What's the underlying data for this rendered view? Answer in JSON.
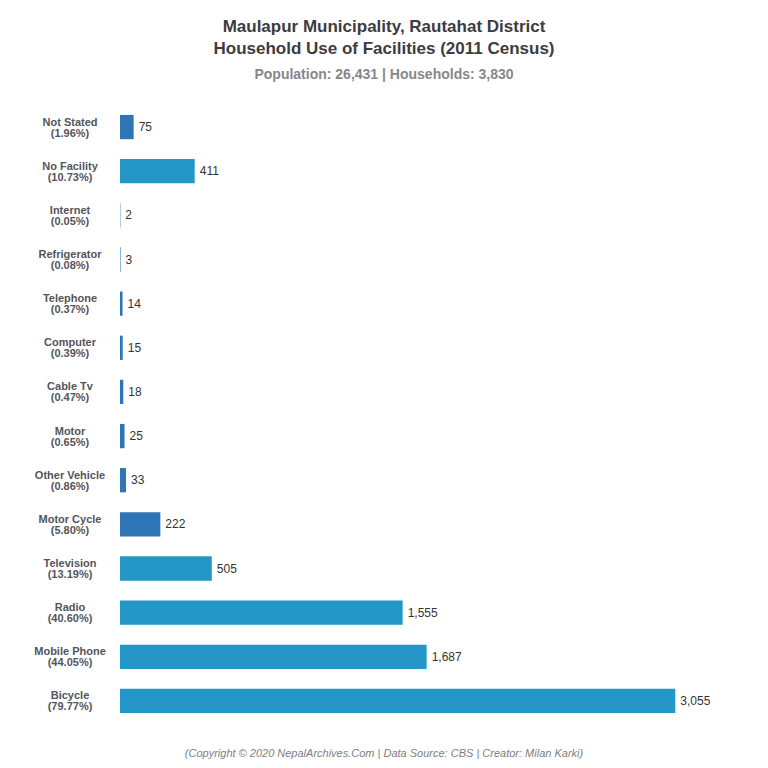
{
  "chart_data": {
    "type": "bar",
    "orientation": "horizontal",
    "title": "Maulapur Municipality, Rautahat District\nHousehold Use of Facilities (2011 Census)",
    "subtitle": "Population: 26,431 | Households: 3,830",
    "annotations": [
      "(Copyright © 2020 NepalArchives.Com | Data Source: CBS | Creator: Milan Karki)"
    ],
    "categories": [
      "Not Stated\n(1.96%)",
      "No Facility\n(10.73%)",
      "Internet\n(0.05%)",
      "Refrigerator\n(0.08%)",
      "Telephone\n(0.37%)",
      "Computer\n(0.39%)",
      "Cable Tv\n(0.47%)",
      "Motor\n(0.65%)",
      "Other Vehicle\n(0.86%)",
      "Motor Cycle\n(5.80%)",
      "Television\n(13.19%)",
      "Radio\n(40.60%)",
      "Mobile Phone\n(44.05%)",
      "Bicycle\n(79.77%)"
    ],
    "values": [
      75,
      411,
      2,
      3,
      14,
      15,
      18,
      25,
      33,
      222,
      505,
      1555,
      1687,
      3055
    ],
    "value_labels": [
      "75",
      "411",
      "2",
      "3",
      "14",
      "15",
      "18",
      "25",
      "33",
      "222",
      "505",
      "1,555",
      "1,687",
      "3,055"
    ],
    "colors": [
      "#2e75b6",
      "#2496c8",
      "#2e75b6",
      "#2e75b6",
      "#2e75b6",
      "#2e75b6",
      "#2e75b6",
      "#2e75b6",
      "#2e75b6",
      "#2e75b6",
      "#2496c8",
      "#2496c8",
      "#2496c8",
      "#2496c8"
    ],
    "xlim": [
      0,
      3400
    ],
    "data_labels": true,
    "tick_labels": "y",
    "grid": false
  }
}
